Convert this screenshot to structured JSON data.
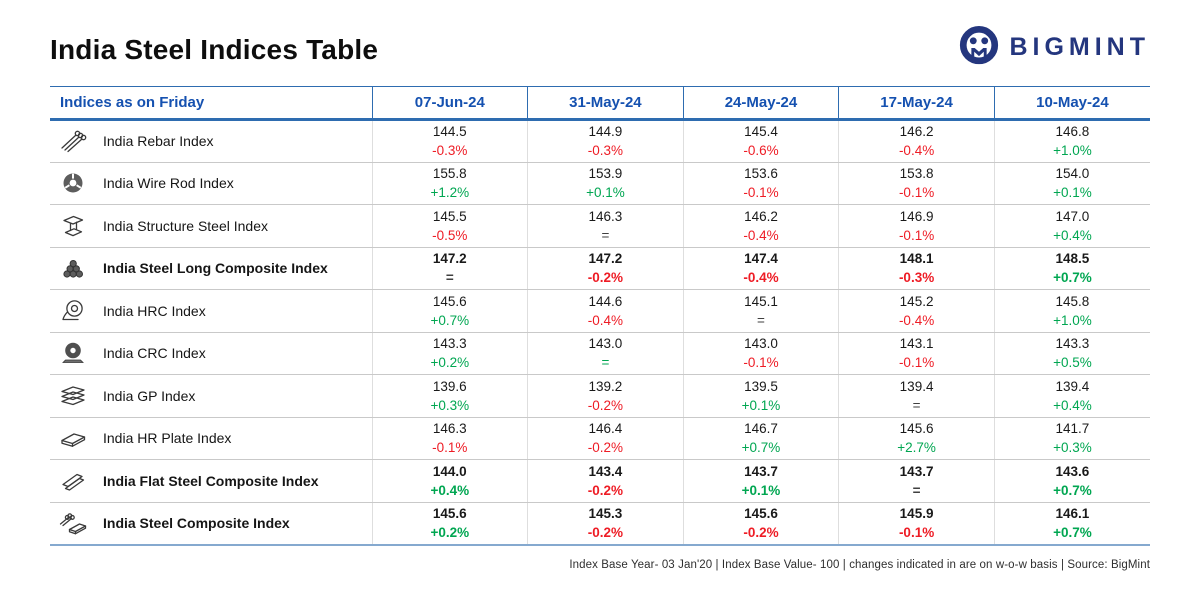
{
  "page": {
    "title": "India Steel Indices Table",
    "logo_text": "BIGMINT",
    "footnote": "Index Base Year- 03 Jan'20 | Index Base Value- 100 | changes indicated in are on w-o-w basis | Source: BigMint"
  },
  "colors": {
    "header_blue": "#1551b0",
    "border_blue": "#2e6cb0",
    "bottom_border": "#85a9cf",
    "up_green": "#00a651",
    "down_red": "#ee1c25",
    "logo_navy": "#24367e"
  },
  "chart_data": {
    "type": "table",
    "title": "India Steel Indices Table",
    "columns": [
      "Indices as on Friday",
      "07-Jun-24",
      "31-May-24",
      "24-May-24",
      "17-May-24",
      "10-May-24"
    ],
    "rows": [
      {
        "name": "India Rebar Index",
        "icon": "rebar-icon",
        "bold": false,
        "cells": [
          {
            "value": "144.5",
            "change": "-0.3%",
            "trend": "down"
          },
          {
            "value": "144.9",
            "change": "-0.3%",
            "trend": "down"
          },
          {
            "value": "145.4",
            "change": "-0.6%",
            "trend": "down"
          },
          {
            "value": "146.2",
            "change": "-0.4%",
            "trend": "down"
          },
          {
            "value": "146.8",
            "change": "+1.0%",
            "trend": "up"
          }
        ]
      },
      {
        "name": "India Wire Rod Index",
        "icon": "wire-rod-icon",
        "bold": false,
        "cells": [
          {
            "value": "155.8",
            "change": "+1.2%",
            "trend": "up"
          },
          {
            "value": "153.9",
            "change": "+0.1%",
            "trend": "up"
          },
          {
            "value": "153.6",
            "change": "-0.1%",
            "trend": "down"
          },
          {
            "value": "153.8",
            "change": "-0.1%",
            "trend": "down"
          },
          {
            "value": "154.0",
            "change": "+0.1%",
            "trend": "up"
          }
        ]
      },
      {
        "name": "India Structure Steel Index",
        "icon": "structure-steel-icon",
        "bold": false,
        "cells": [
          {
            "value": "145.5",
            "change": "-0.5%",
            "trend": "down"
          },
          {
            "value": "146.3",
            "change": "=",
            "trend": "flat"
          },
          {
            "value": "146.2",
            "change": "-0.4%",
            "trend": "down"
          },
          {
            "value": "146.9",
            "change": "-0.1%",
            "trend": "down"
          },
          {
            "value": "147.0",
            "change": "+0.4%",
            "trend": "up"
          }
        ]
      },
      {
        "name": "India Steel Long Composite Index",
        "icon": "long-composite-icon",
        "bold": true,
        "cells": [
          {
            "value": "147.2",
            "change": "=",
            "trend": "flat"
          },
          {
            "value": "147.2",
            "change": "-0.2%",
            "trend": "down"
          },
          {
            "value": "147.4",
            "change": "-0.4%",
            "trend": "down"
          },
          {
            "value": "148.1",
            "change": "-0.3%",
            "trend": "down"
          },
          {
            "value": "148.5",
            "change": "+0.7%",
            "trend": "up"
          }
        ]
      },
      {
        "name": "India HRC Index",
        "icon": "hrc-icon",
        "bold": false,
        "cells": [
          {
            "value": "145.6",
            "change": "+0.7%",
            "trend": "up"
          },
          {
            "value": "144.6",
            "change": "-0.4%",
            "trend": "down"
          },
          {
            "value": "145.1",
            "change": "=",
            "trend": "flat"
          },
          {
            "value": "145.2",
            "change": "-0.4%",
            "trend": "down"
          },
          {
            "value": "145.8",
            "change": "+1.0%",
            "trend": "up"
          }
        ]
      },
      {
        "name": "India CRC Index",
        "icon": "crc-icon",
        "bold": false,
        "cells": [
          {
            "value": "143.3",
            "change": "+0.2%",
            "trend": "up"
          },
          {
            "value": "143.0",
            "change": "=",
            "trend": "flat-up"
          },
          {
            "value": "143.0",
            "change": "-0.1%",
            "trend": "down"
          },
          {
            "value": "143.1",
            "change": "-0.1%",
            "trend": "down"
          },
          {
            "value": "143.3",
            "change": "+0.5%",
            "trend": "up"
          }
        ]
      },
      {
        "name": "India GP Index",
        "icon": "gp-icon",
        "bold": false,
        "cells": [
          {
            "value": "139.6",
            "change": "+0.3%",
            "trend": "up"
          },
          {
            "value": "139.2",
            "change": "-0.2%",
            "trend": "down"
          },
          {
            "value": "139.5",
            "change": "+0.1%",
            "trend": "up"
          },
          {
            "value": "139.4",
            "change": "=",
            "trend": "flat"
          },
          {
            "value": "139.4",
            "change": "+0.4%",
            "trend": "up"
          }
        ]
      },
      {
        "name": "India HR Plate Index",
        "icon": "hr-plate-icon",
        "bold": false,
        "cells": [
          {
            "value": "146.3",
            "change": "-0.1%",
            "trend": "down"
          },
          {
            "value": "146.4",
            "change": "-0.2%",
            "trend": "down"
          },
          {
            "value": "146.7",
            "change": "+0.7%",
            "trend": "up"
          },
          {
            "value": "145.6",
            "change": "+2.7%",
            "trend": "up"
          },
          {
            "value": "141.7",
            "change": "+0.3%",
            "trend": "up"
          }
        ]
      },
      {
        "name": "India Flat Steel Composite Index",
        "icon": "flat-composite-icon",
        "bold": true,
        "cells": [
          {
            "value": "144.0",
            "change": "+0.4%",
            "trend": "up"
          },
          {
            "value": "143.4",
            "change": "-0.2%",
            "trend": "down"
          },
          {
            "value": "143.7",
            "change": "+0.1%",
            "trend": "up"
          },
          {
            "value": "143.7",
            "change": "=",
            "trend": "flat"
          },
          {
            "value": "143.6",
            "change": "+0.7%",
            "trend": "up"
          }
        ]
      },
      {
        "name": "India Steel Composite Index",
        "icon": "steel-composite-icon",
        "bold": true,
        "cells": [
          {
            "value": "145.6",
            "change": "+0.2%",
            "trend": "up"
          },
          {
            "value": "145.3",
            "change": "-0.2%",
            "trend": "down"
          },
          {
            "value": "145.6",
            "change": "-0.2%",
            "trend": "down"
          },
          {
            "value": "145.9",
            "change": "-0.1%",
            "trend": "down"
          },
          {
            "value": "146.1",
            "change": "+0.7%",
            "trend": "up"
          }
        ]
      }
    ]
  }
}
